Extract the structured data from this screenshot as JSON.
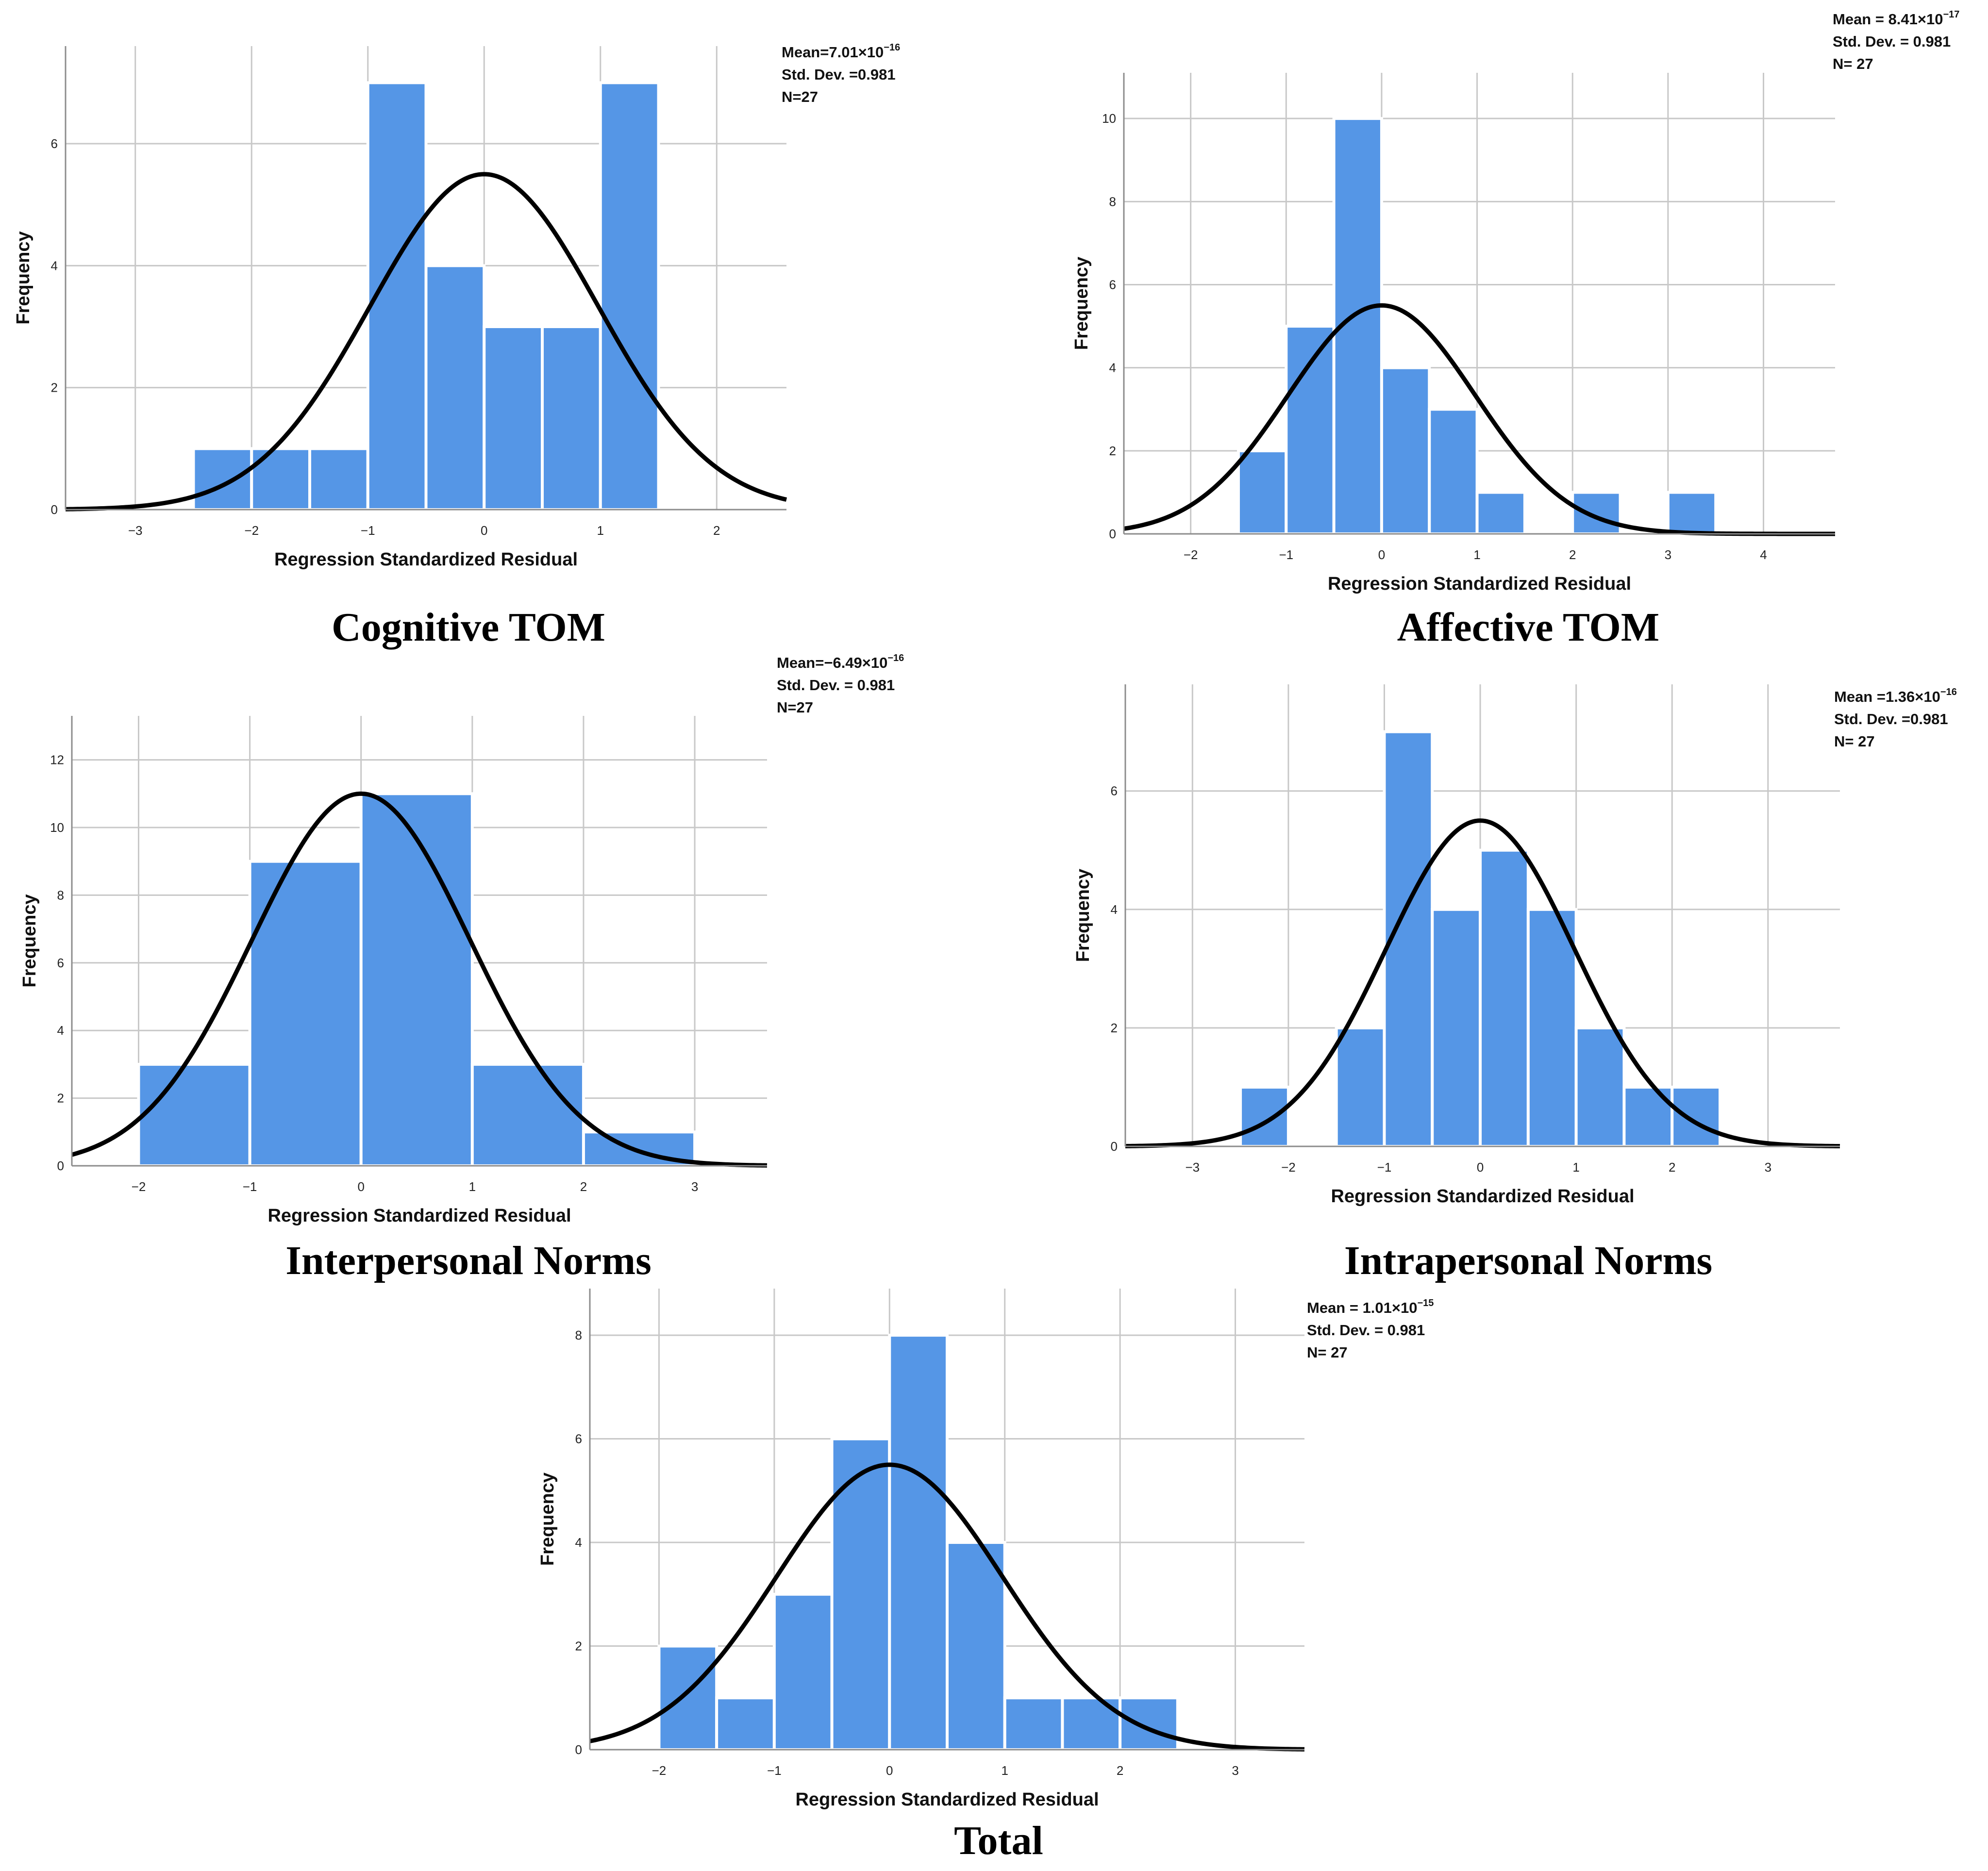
{
  "chart_data": [
    {
      "id": "cognitive",
      "type": "bar",
      "subtype": "histogram-with-normal-curve",
      "title": "Cognitive TOM",
      "xlabel": "Regression Standardized Residual",
      "ylabel": "Frequency",
      "xlim": [
        -3.6,
        2.6
      ],
      "ylim": [
        0,
        7.6
      ],
      "xticks": [
        -3,
        -2,
        -1,
        0,
        1,
        2
      ],
      "yticks": [
        0,
        2,
        4,
        6
      ],
      "bin_width": 0.5,
      "bins": [
        {
          "x0": -2.5,
          "x1": -2.0,
          "count": 1
        },
        {
          "x0": -2.0,
          "x1": -1.5,
          "count": 1
        },
        {
          "x0": -1.5,
          "x1": -1.0,
          "count": 1
        },
        {
          "x0": -1.0,
          "x1": -0.5,
          "count": 7
        },
        {
          "x0": -0.5,
          "x1": 0.0,
          "count": 4
        },
        {
          "x0": 0.0,
          "x1": 0.5,
          "count": 3
        },
        {
          "x0": 0.5,
          "x1": 1.0,
          "count": 3
        },
        {
          "x0": 1.0,
          "x1": 1.5,
          "count": 7
        }
      ],
      "normal_curve": {
        "mean": 0,
        "sd": 0.981,
        "peak": 5.5
      },
      "stats": {
        "mean_label": "Mean=7.01×10",
        "mean_exp": "−16",
        "sd_label": "Std. Dev. =0.981",
        "n_label": "N=27"
      }
    },
    {
      "id": "affective",
      "type": "bar",
      "subtype": "histogram-with-normal-curve",
      "title": "Affective TOM",
      "xlabel": "Regression Standardized Residual",
      "ylabel": "Frequency",
      "xlim": [
        -2.7,
        4.75
      ],
      "ylim": [
        0,
        11.1
      ],
      "xticks": [
        -2,
        -1,
        0,
        1,
        2,
        3,
        4
      ],
      "yticks": [
        0,
        2,
        4,
        6,
        8,
        10
      ],
      "bin_width": 0.5,
      "bins": [
        {
          "x0": -1.5,
          "x1": -1.0,
          "count": 2
        },
        {
          "x0": -1.0,
          "x1": -0.5,
          "count": 5
        },
        {
          "x0": -0.5,
          "x1": 0.0,
          "count": 10
        },
        {
          "x0": 0.0,
          "x1": 0.5,
          "count": 4
        },
        {
          "x0": 0.5,
          "x1": 1.0,
          "count": 3
        },
        {
          "x0": 1.0,
          "x1": 1.5,
          "count": 1
        },
        {
          "x0": 2.0,
          "x1": 2.5,
          "count": 1
        },
        {
          "x0": 3.0,
          "x1": 3.5,
          "count": 1
        }
      ],
      "normal_curve": {
        "mean": 0,
        "sd": 0.981,
        "peak": 5.5
      },
      "stats": {
        "mean_label": "Mean = 8.41×10",
        "mean_exp": "−17",
        "sd_label": "Std. Dev. = 0.981",
        "n_label": "N= 27"
      }
    },
    {
      "id": "interpersonal",
      "type": "bar",
      "subtype": "histogram-with-normal-curve",
      "title": "Interpersonal Norms",
      "xlabel": "Regression Standardized Residual",
      "ylabel": "Frequency",
      "xlim": [
        -2.6,
        3.65
      ],
      "ylim": [
        0,
        13.3
      ],
      "xticks": [
        -2,
        -1,
        0,
        1,
        2,
        3
      ],
      "yticks": [
        0,
        2,
        4,
        6,
        8,
        10,
        12
      ],
      "bin_width": 1.0,
      "bins": [
        {
          "x0": -2.0,
          "x1": -1.0,
          "count": 3
        },
        {
          "x0": -1.0,
          "x1": 0.0,
          "count": 9
        },
        {
          "x0": 0.0,
          "x1": 1.0,
          "count": 11
        },
        {
          "x0": 1.0,
          "x1": 2.0,
          "count": 3
        },
        {
          "x0": 2.0,
          "x1": 3.0,
          "count": 1
        }
      ],
      "normal_curve": {
        "mean": 0,
        "sd": 0.981,
        "peak": 11.0
      },
      "stats": {
        "mean_label": "Mean=−6.49×10",
        "mean_exp": "−16",
        "sd_label": "Std. Dev. = 0.981",
        "n_label": "N=27"
      }
    },
    {
      "id": "intrapersonal",
      "type": "bar",
      "subtype": "histogram-with-normal-curve",
      "title": "Intrapersonal Norms",
      "xlabel": "Regression Standardized Residual",
      "ylabel": "Frequency",
      "xlim": [
        -3.7,
        3.75
      ],
      "ylim": [
        0,
        7.8
      ],
      "xticks": [
        -3,
        -2,
        -1,
        0,
        1,
        2,
        3
      ],
      "yticks": [
        0,
        2,
        4,
        6
      ],
      "bin_width": 0.5,
      "bins": [
        {
          "x0": -2.5,
          "x1": -2.0,
          "count": 1
        },
        {
          "x0": -1.5,
          "x1": -1.0,
          "count": 2
        },
        {
          "x0": -1.0,
          "x1": -0.5,
          "count": 7
        },
        {
          "x0": -0.5,
          "x1": 0.0,
          "count": 4
        },
        {
          "x0": 0.0,
          "x1": 0.5,
          "count": 5
        },
        {
          "x0": 0.5,
          "x1": 1.0,
          "count": 4
        },
        {
          "x0": 1.0,
          "x1": 1.5,
          "count": 2
        },
        {
          "x0": 1.5,
          "x1": 2.0,
          "count": 1
        },
        {
          "x0": 2.0,
          "x1": 2.5,
          "count": 1
        }
      ],
      "normal_curve": {
        "mean": 0,
        "sd": 0.981,
        "peak": 5.5
      },
      "stats": {
        "mean_label": "Mean =1.36×10",
        "mean_exp": "−16",
        "sd_label": "Std. Dev. =0.981",
        "n_label": "N= 27"
      }
    },
    {
      "id": "total",
      "type": "bar",
      "subtype": "histogram-with-normal-curve",
      "title": "Total",
      "xlabel": "Regression Standardized Residual",
      "ylabel": "Frequency",
      "xlim": [
        -2.6,
        3.6
      ],
      "ylim": [
        0,
        8.9
      ],
      "xticks": [
        -2,
        -1,
        0,
        1,
        2,
        3
      ],
      "yticks": [
        0,
        2,
        4,
        6,
        8
      ],
      "bin_width": 0.5,
      "bins": [
        {
          "x0": -2.0,
          "x1": -1.5,
          "count": 2
        },
        {
          "x0": -1.5,
          "x1": -1.0,
          "count": 1
        },
        {
          "x0": -1.0,
          "x1": -0.5,
          "count": 3
        },
        {
          "x0": -0.5,
          "x1": 0.0,
          "count": 6
        },
        {
          "x0": 0.0,
          "x1": 0.5,
          "count": 8
        },
        {
          "x0": 0.5,
          "x1": 1.0,
          "count": 4
        },
        {
          "x0": 1.0,
          "x1": 1.5,
          "count": 1
        },
        {
          "x0": 1.5,
          "x1": 2.0,
          "count": 1
        },
        {
          "x0": 2.0,
          "x1": 2.5,
          "count": 1
        }
      ],
      "normal_curve": {
        "mean": 0,
        "sd": 0.981,
        "peak": 5.5
      },
      "stats": {
        "mean_label": "Mean = 1.01×10",
        "mean_exp": "−15",
        "sd_label": "Std. Dev. = 0.981",
        "n_label": "N= 27"
      }
    }
  ],
  "colors": {
    "bar_fill": "#5596e6",
    "bar_stroke": "#ffffff",
    "curve": "#000000",
    "grid": "#c8c8c8",
    "axis": "#8c8c8c"
  }
}
